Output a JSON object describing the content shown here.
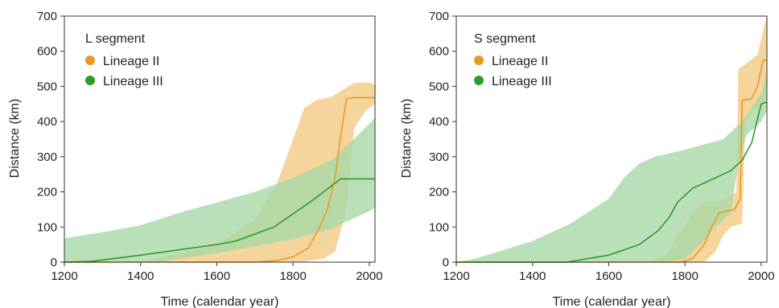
{
  "chart_data": [
    {
      "type": "area",
      "xlabel": "Time (calendar year)",
      "ylabel": "Distance (km)",
      "xlim": [
        1200,
        2015
      ],
      "ylim": [
        0,
        700
      ],
      "xticks": [
        1200,
        1400,
        1600,
        1800,
        2000
      ],
      "yticks": [
        0,
        100,
        200,
        300,
        400,
        500,
        600,
        700
      ],
      "grid": false,
      "legend": {
        "title": "L segment",
        "placement": "top-left"
      },
      "series": [
        {
          "name": "Lineage II",
          "color": "#E69A24",
          "band_color": "#F5CE8C",
          "median": [
            [
              1200,
              0
            ],
            [
              1700,
              0
            ],
            [
              1760,
              5
            ],
            [
              1800,
              15
            ],
            [
              1840,
              40
            ],
            [
              1870,
              100
            ],
            [
              1890,
              150
            ],
            [
              1910,
              240
            ],
            [
              1925,
              360
            ],
            [
              1940,
              465
            ],
            [
              1960,
              468
            ],
            [
              2015,
              468
            ]
          ],
          "upper": [
            [
              1200,
              0
            ],
            [
              1400,
              0
            ],
            [
              1600,
              50
            ],
            [
              1700,
              120
            ],
            [
              1760,
              230
            ],
            [
              1800,
              350
            ],
            [
              1830,
              440
            ],
            [
              1860,
              460
            ],
            [
              1900,
              470
            ],
            [
              1960,
              510
            ],
            [
              2000,
              512
            ],
            [
              2015,
              505
            ]
          ],
          "lower": [
            [
              1200,
              0
            ],
            [
              1780,
              0
            ],
            [
              1830,
              2
            ],
            [
              1880,
              10
            ],
            [
              1910,
              30
            ],
            [
              1940,
              150
            ],
            [
              1960,
              380
            ],
            [
              1990,
              430
            ],
            [
              2015,
              450
            ]
          ]
        },
        {
          "name": "Lineage III",
          "color": "#2E9B2E",
          "band_color": "#A8D8A8",
          "median": [
            [
              1200,
              0
            ],
            [
              1270,
              2
            ],
            [
              1400,
              20
            ],
            [
              1500,
              35
            ],
            [
              1600,
              50
            ],
            [
              1650,
              60
            ],
            [
              1750,
              100
            ],
            [
              1850,
              175
            ],
            [
              1925,
              237
            ],
            [
              2015,
              237
            ]
          ],
          "upper": [
            [
              1200,
              68
            ],
            [
              1300,
              85
            ],
            [
              1400,
              105
            ],
            [
              1500,
              140
            ],
            [
              1600,
              170
            ],
            [
              1700,
              200
            ],
            [
              1800,
              240
            ],
            [
              1900,
              290
            ],
            [
              1950,
              340
            ],
            [
              2015,
              410
            ]
          ],
          "lower": [
            [
              1200,
              0
            ],
            [
              1450,
              0
            ],
            [
              1500,
              10
            ],
            [
              1600,
              25
            ],
            [
              1700,
              45
            ],
            [
              1800,
              65
            ],
            [
              1900,
              95
            ],
            [
              2000,
              145
            ],
            [
              2015,
              155
            ]
          ]
        }
      ]
    },
    {
      "type": "area",
      "xlabel": "Time (calendar year)",
      "ylabel": "Distance (km)",
      "xlim": [
        1200,
        2015
      ],
      "ylim": [
        0,
        700
      ],
      "xticks": [
        1200,
        1400,
        1600,
        1800,
        2000
      ],
      "yticks": [
        0,
        100,
        200,
        300,
        400,
        500,
        600,
        700
      ],
      "grid": false,
      "legend": {
        "title": "S segment",
        "placement": "top-left"
      },
      "series": [
        {
          "name": "Lineage II",
          "color": "#E69A24",
          "band_color": "#F5CE8C",
          "median": [
            [
              1200,
              0
            ],
            [
              1790,
              0
            ],
            [
              1820,
              10
            ],
            [
              1850,
              50
            ],
            [
              1870,
              100
            ],
            [
              1890,
              140
            ],
            [
              1930,
              150
            ],
            [
              1945,
              180
            ],
            [
              1950,
              460
            ],
            [
              1975,
              465
            ],
            [
              1990,
              500
            ],
            [
              2005,
              575
            ],
            [
              2015,
              575
            ]
          ],
          "upper": [
            [
              1200,
              0
            ],
            [
              1700,
              0
            ],
            [
              1750,
              20
            ],
            [
              1790,
              90
            ],
            [
              1820,
              140
            ],
            [
              1850,
              170
            ],
            [
              1900,
              175
            ],
            [
              1935,
              200
            ],
            [
              1940,
              550
            ],
            [
              1960,
              565
            ],
            [
              1990,
              590
            ],
            [
              2005,
              660
            ],
            [
              2015,
              700
            ]
          ],
          "lower": [
            [
              1200,
              0
            ],
            [
              1850,
              0
            ],
            [
              1880,
              30
            ],
            [
              1900,
              75
            ],
            [
              1920,
              100
            ],
            [
              1950,
              110
            ],
            [
              1958,
              390
            ],
            [
              1975,
              430
            ],
            [
              2000,
              450
            ],
            [
              2015,
              460
            ]
          ]
        },
        {
          "name": "Lineage III",
          "color": "#2E9B2E",
          "band_color": "#A8D8A8",
          "median": [
            [
              1200,
              0
            ],
            [
              1490,
              0
            ],
            [
              1600,
              20
            ],
            [
              1680,
              50
            ],
            [
              1730,
              90
            ],
            [
              1760,
              130
            ],
            [
              1780,
              170
            ],
            [
              1820,
              210
            ],
            [
              1880,
              240
            ],
            [
              1920,
              260
            ],
            [
              1950,
              290
            ],
            [
              1975,
              340
            ],
            [
              2000,
              450
            ],
            [
              2015,
              455
            ]
          ],
          "upper": [
            [
              1200,
              0
            ],
            [
              1250,
              10
            ],
            [
              1400,
              60
            ],
            [
              1500,
              110
            ],
            [
              1600,
              180
            ],
            [
              1640,
              240
            ],
            [
              1680,
              280
            ],
            [
              1720,
              300
            ],
            [
              1800,
              320
            ],
            [
              1900,
              350
            ],
            [
              1950,
              400
            ],
            [
              2000,
              480
            ],
            [
              2015,
              540
            ]
          ],
          "lower": [
            [
              1200,
              0
            ],
            [
              1750,
              0
            ],
            [
              1800,
              10
            ],
            [
              1840,
              50
            ],
            [
              1880,
              100
            ],
            [
              1920,
              140
            ],
            [
              1940,
              280
            ],
            [
              1960,
              360
            ],
            [
              2000,
              400
            ],
            [
              2015,
              430
            ]
          ]
        }
      ]
    }
  ]
}
